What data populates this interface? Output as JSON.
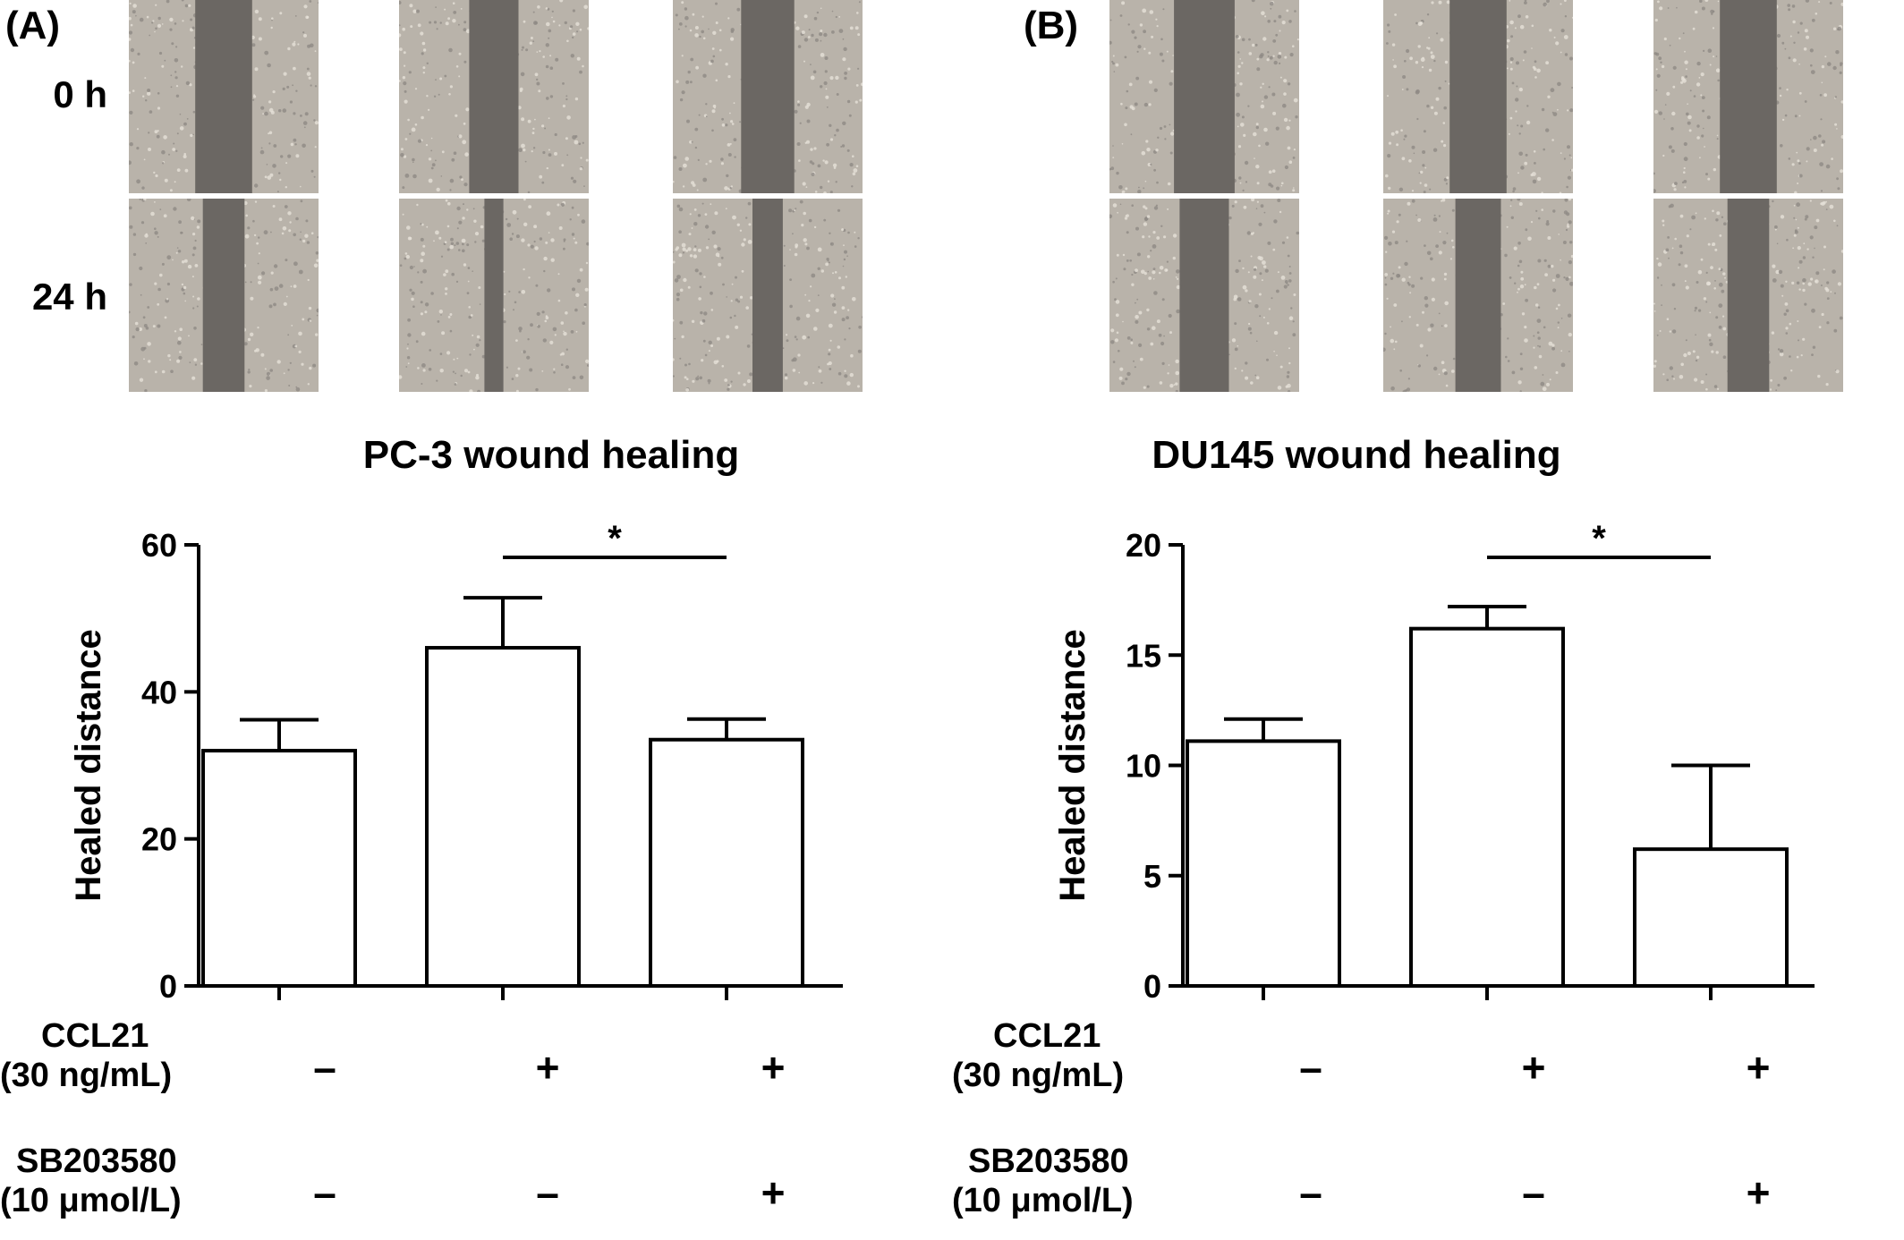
{
  "panels": [
    {
      "letter": "(A)",
      "row_labels": [
        "0 h",
        "24 h"
      ],
      "condition_labels": {
        "ccl21_line1": "CCL21",
        "ccl21_line2": "(30 ng/mL)",
        "sb_line1": "SB203580",
        "sb_line2": "(10 μmol/L)"
      },
      "signs": {
        "ccl21": [
          "–",
          "+",
          "+"
        ],
        "sb": [
          "–",
          "–",
          "+"
        ]
      }
    },
    {
      "letter": "(B)",
      "row_labels": [],
      "condition_labels": {
        "ccl21_line1": "CCL21",
        "ccl21_line2": "(30 ng/mL)",
        "sb_line1": "SB203580",
        "sb_line2": "(10 μmol/L)"
      },
      "signs": {
        "ccl21": [
          "–",
          "+",
          "+"
        ],
        "sb": [
          "–",
          "–",
          "+"
        ]
      }
    }
  ],
  "images": {
    "panel_a": {
      "row_0h": [
        {
          "gap": 0.3
        },
        {
          "gap": 0.26
        },
        {
          "gap": 0.28
        }
      ],
      "row_24h": [
        {
          "gap": 0.22
        },
        {
          "gap": 0.1
        },
        {
          "gap": 0.16
        }
      ]
    },
    "panel_b": {
      "row_0h": [
        {
          "gap": 0.32
        },
        {
          "gap": 0.3
        },
        {
          "gap": 0.3
        }
      ],
      "row_24h": [
        {
          "gap": 0.26
        },
        {
          "gap": 0.24
        },
        {
          "gap": 0.22
        }
      ]
    }
  },
  "colors": {
    "bar_fill": "#ffffff",
    "stroke": "#000000",
    "cell_bg": "#b9b3aa",
    "gap_color": "#6b6763"
  },
  "chart_data": [
    {
      "type": "bar",
      "title": "PC-3 wound healing",
      "ylabel": "Healed distance",
      "xlabel": "",
      "categories": [
        "",
        "",
        ""
      ],
      "values": [
        32,
        46,
        33.5
      ],
      "errors": [
        4.2,
        6.8,
        2.8
      ],
      "ylim": [
        0,
        60
      ],
      "yticks": [
        0,
        20,
        40,
        60
      ],
      "significance": {
        "from": 1,
        "to": 2,
        "label": "*"
      }
    },
    {
      "type": "bar",
      "title": "DU145 wound healing",
      "ylabel": "Healed distance",
      "xlabel": "",
      "categories": [
        "",
        "",
        ""
      ],
      "values": [
        11.1,
        16.2,
        6.2
      ],
      "errors": [
        1.0,
        1.0,
        3.8
      ],
      "ylim": [
        0,
        20
      ],
      "yticks": [
        0,
        5,
        10,
        15,
        20
      ],
      "significance": {
        "from": 1,
        "to": 2,
        "label": "*"
      }
    }
  ]
}
